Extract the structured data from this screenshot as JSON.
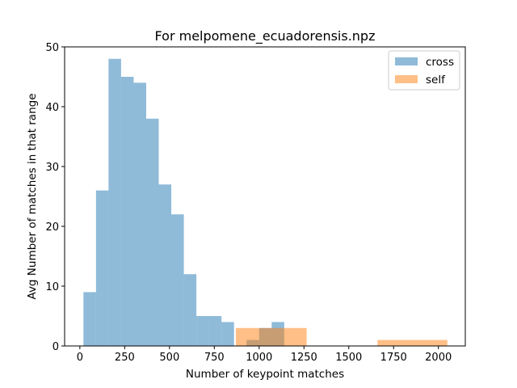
{
  "chart_data": {
    "type": "bar",
    "title": "For melpomene_ecuadorensis.npz",
    "xlabel": "Number of keypoint matches",
    "ylabel": "Avg Number of matches in that range",
    "xlim": [
      -85,
      2150
    ],
    "ylim": [
      0,
      50
    ],
    "xticks": [
      0,
      250,
      500,
      750,
      1000,
      1250,
      1500,
      1750,
      2000
    ],
    "yticks": [
      0,
      10,
      20,
      30,
      40,
      50
    ],
    "legend_position": "top-right",
    "series": [
      {
        "name": "cross",
        "color": "#1f77b4",
        "bins": [
          {
            "x0": 20,
            "x1": 90,
            "value": 9
          },
          {
            "x0": 90,
            "x1": 160,
            "value": 26
          },
          {
            "x0": 160,
            "x1": 230,
            "value": 48
          },
          {
            "x0": 230,
            "x1": 300,
            "value": 45
          },
          {
            "x0": 300,
            "x1": 370,
            "value": 44
          },
          {
            "x0": 370,
            "x1": 440,
            "value": 38
          },
          {
            "x0": 440,
            "x1": 510,
            "value": 27
          },
          {
            "x0": 510,
            "x1": 580,
            "value": 22
          },
          {
            "x0": 580,
            "x1": 650,
            "value": 12
          },
          {
            "x0": 650,
            "x1": 720,
            "value": 5
          },
          {
            "x0": 720,
            "x1": 790,
            "value": 5
          },
          {
            "x0": 790,
            "x1": 860,
            "value": 4
          },
          {
            "x0": 860,
            "x1": 930,
            "value": 0
          },
          {
            "x0": 930,
            "x1": 1000,
            "value": 1
          },
          {
            "x0": 1000,
            "x1": 1070,
            "value": 3
          },
          {
            "x0": 1070,
            "x1": 1140,
            "value": 4
          }
        ]
      },
      {
        "name": "self",
        "color": "#ff7f0e",
        "bins": [
          {
            "x0": 870,
            "x1": 1070,
            "value": 3
          },
          {
            "x0": 1070,
            "x1": 1265,
            "value": 3
          },
          {
            "x0": 1660,
            "x1": 1855,
            "value": 1
          },
          {
            "x0": 1855,
            "x1": 2050,
            "value": 1
          }
        ]
      }
    ]
  }
}
